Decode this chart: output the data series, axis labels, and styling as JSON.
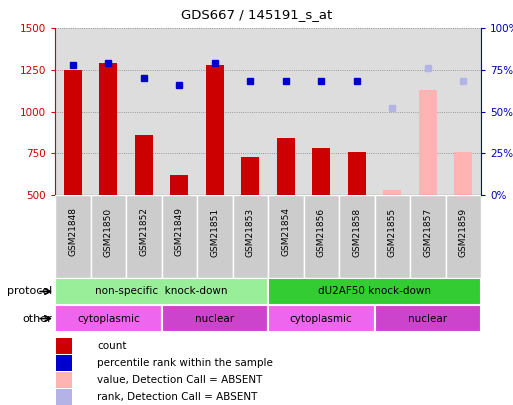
{
  "title": "GDS667 / 145191_s_at",
  "samples": [
    "GSM21848",
    "GSM21850",
    "GSM21852",
    "GSM21849",
    "GSM21851",
    "GSM21853",
    "GSM21854",
    "GSM21856",
    "GSM21858",
    "GSM21855",
    "GSM21857",
    "GSM21859"
  ],
  "bar_values": [
    1250,
    1290,
    860,
    620,
    1280,
    730,
    840,
    780,
    760,
    null,
    null,
    null
  ],
  "bar_absent_values": [
    null,
    null,
    null,
    null,
    null,
    null,
    null,
    null,
    null,
    530,
    1130,
    760
  ],
  "dot_values": [
    78,
    79,
    70,
    66,
    79,
    68,
    68,
    68,
    68,
    null,
    null,
    null
  ],
  "dot_absent_values": [
    null,
    null,
    null,
    null,
    null,
    null,
    null,
    null,
    null,
    52,
    76,
    68
  ],
  "bar_color": "#cc0000",
  "bar_absent_color": "#ffb3b3",
  "dot_color": "#0000cc",
  "dot_absent_color": "#b3b3e6",
  "ylim_left": [
    500,
    1500
  ],
  "ylim_right": [
    0,
    100
  ],
  "yticks_left": [
    500,
    750,
    1000,
    1250,
    1500
  ],
  "yticks_right": [
    0,
    25,
    50,
    75,
    100
  ],
  "ytick_labels_right": [
    "0%",
    "25%",
    "50%",
    "75%",
    "100%"
  ],
  "protocol_groups": [
    {
      "label": "non-specific  knock-down",
      "start": 0,
      "end": 6,
      "color": "#99ee99"
    },
    {
      "label": "dU2AF50 knock-down",
      "start": 6,
      "end": 12,
      "color": "#33cc33"
    }
  ],
  "other_groups": [
    {
      "label": "cytoplasmic",
      "start": 0,
      "end": 3,
      "color": "#ee66ee"
    },
    {
      "label": "nuclear",
      "start": 3,
      "end": 6,
      "color": "#cc44cc"
    },
    {
      "label": "cytoplasmic",
      "start": 6,
      "end": 9,
      "color": "#ee66ee"
    },
    {
      "label": "nuclear",
      "start": 9,
      "end": 12,
      "color": "#cc44cc"
    }
  ],
  "legend_items": [
    {
      "label": "count",
      "color": "#cc0000"
    },
    {
      "label": "percentile rank within the sample",
      "color": "#0000cc"
    },
    {
      "label": "value, Detection Call = ABSENT",
      "color": "#ffb3b3"
    },
    {
      "label": "rank, Detection Call = ABSENT",
      "color": "#b3b3e6"
    }
  ],
  "left_color": "#cc0000",
  "right_color": "#0000bb",
  "bg_color": "#dddddd"
}
